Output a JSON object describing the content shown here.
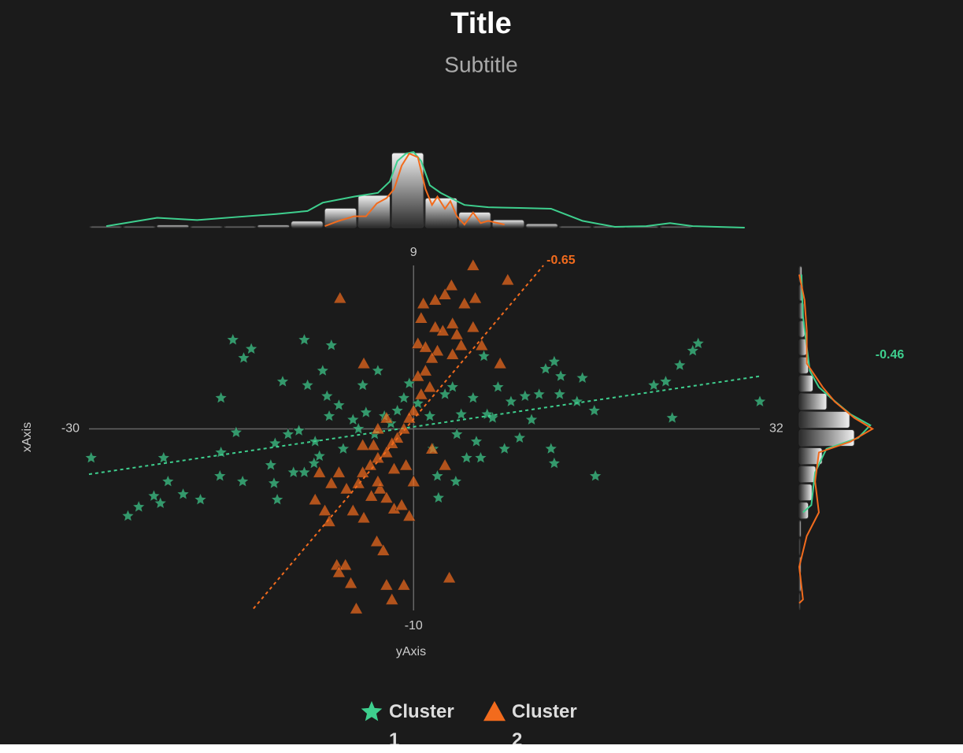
{
  "chart_data": {
    "type": "scatter",
    "title": "Title",
    "subtitle": "Subtitle",
    "xlabel": "yAxis",
    "ylabel": "xAxis",
    "xlim": [
      -30,
      32
    ],
    "ylim": [
      -10,
      9
    ],
    "xticks": [
      -30,
      32
    ],
    "yticks": [
      -10,
      9
    ],
    "series": [
      {
        "name": "Cluster 1",
        "color": "#3ecf8e",
        "marker": "star",
        "x": [
          -29.8,
          -26.4,
          -25.4,
          -24.0,
          -23.4,
          -23.1,
          -22.7,
          -21.3,
          -19.7,
          -17.8,
          -17.8,
          -17.9,
          -16.7,
          -15.8,
          -15.7,
          -15.0,
          -16.4,
          -13.2,
          -12.9,
          -12.6,
          -12.8,
          -12.1,
          -11.6,
          -11.1,
          -10.6,
          -10.1,
          -10.1,
          -9.8,
          -9.2,
          -9.1,
          -8.7,
          -8.4,
          -7.6,
          -8.0,
          -7.8,
          -6.9,
          -6.5,
          -5.6,
          -5.1,
          -4.7,
          -4.4,
          -3.6,
          -3.3,
          -2.7,
          -2.1,
          -1.5,
          -0.9,
          -0.4,
          0.4,
          1.5,
          1.8,
          2.2,
          2.3,
          2.9,
          3.6,
          3.9,
          4.0,
          4.4,
          4.9,
          5.5,
          5.8,
          6.2,
          6.5,
          6.8,
          7.3,
          7.8,
          8.4,
          9.0,
          9.8,
          10.3,
          10.9,
          11.6,
          12.2,
          12.7,
          13.0,
          13.0,
          13.5,
          13.6,
          15.1,
          15.6,
          16.7,
          16.8,
          22.2,
          23.3,
          23.9,
          24.6,
          25.8,
          26.3,
          32.0
        ],
        "y": [
          -1.6,
          -4.8,
          -4.3,
          -3.7,
          -4.1,
          -1.6,
          -2.9,
          -3.6,
          -3.9,
          -1.3,
          1.7,
          -2.6,
          4.9,
          -2.9,
          3.9,
          4.4,
          -0.2,
          -2.0,
          -3.0,
          -3.9,
          -0.8,
          2.6,
          -0.3,
          -2.4,
          -0.1,
          4.9,
          -2.4,
          2.4,
          -1.9,
          -0.7,
          -1.5,
          3.2,
          4.6,
          1.8,
          0.7,
          1.3,
          -1.1,
          0.5,
          0.0,
          2.4,
          0.9,
          -0.3,
          3.2,
          0.7,
          0.3,
          1.0,
          1.7,
          2.5,
          1.4,
          0.7,
          -1.1,
          -2.6,
          -3.8,
          1.9,
          2.3,
          -2.9,
          -0.3,
          0.8,
          -1.6,
          1.7,
          -0.7,
          -1.6,
          4.0,
          0.8,
          0.6,
          2.3,
          -1.1,
          1.5,
          -0.5,
          1.8,
          0.5,
          1.9,
          3.3,
          -1.1,
          3.7,
          -1.9,
          1.9,
          2.9,
          1.5,
          2.8,
          1.0,
          -2.6,
          2.4,
          2.6,
          0.6,
          3.5,
          4.3,
          4.7,
          1.5
        ],
        "trend": {
          "x": [
            -30,
            32
          ],
          "y": [
            -2.5,
            2.9
          ],
          "label": "-0.46"
        },
        "density_top": {
          "x": [
            -28.4,
            -23.7,
            -20.0,
            -16.4,
            -12.7,
            -9.8,
            -8.4,
            -5.5,
            -3.3,
            -2.2,
            -1.5,
            -0.7,
            0.0,
            0.7,
            1.5,
            2.5,
            4.7,
            6.9,
            9.8,
            12.7,
            15.6,
            18.6,
            21.5,
            23.7,
            25.8,
            30.6
          ],
          "values": [
            0.02,
            0.13,
            0.1,
            0.14,
            0.18,
            0.22,
            0.33,
            0.41,
            0.46,
            0.61,
            0.88,
            0.98,
            1.0,
            0.88,
            0.56,
            0.46,
            0.3,
            0.27,
            0.26,
            0.25,
            0.09,
            0.01,
            0.02,
            0.06,
            0.02,
            0.0
          ]
        },
        "density_right": {
          "y": [
            8.5,
            6.2,
            4.5,
            3.2,
            2.3,
            1.7,
            0.8,
            0.2,
            -0.5,
            -1.1,
            -2.4,
            -4.2,
            -4.6
          ],
          "values": [
            0.03,
            0.05,
            0.1,
            0.14,
            0.26,
            0.42,
            0.68,
            0.94,
            0.78,
            0.36,
            0.21,
            0.16,
            0.05
          ]
        }
      },
      {
        "name": "Cluster 2",
        "color": "#f26b1d",
        "marker": "triangle",
        "x": [
          -6.8,
          5.5,
          8.7,
          3.5,
          5.7,
          4.7,
          2.9,
          2.0,
          0.9,
          0.7,
          2.0,
          2.7,
          3.6,
          5.5,
          4.0,
          0.4,
          1.1,
          2.2,
          4.4,
          6.3,
          8.0,
          -4.6,
          1.7,
          3.6,
          1.1,
          0.4,
          1.5,
          0.7,
          0.0,
          -0.4,
          -0.9,
          -1.5,
          -2.0,
          -2.5,
          -3.3,
          -4.0,
          -4.7,
          -5.1,
          -6.2,
          -6.9,
          -7.6,
          -8.7,
          -9.1,
          -8.2,
          -7.8,
          -5.6,
          -4.6,
          -3.9,
          -3.1,
          -2.5,
          -1.8,
          -1.1,
          -0.4,
          0.0,
          -0.7,
          -1.8,
          -3.3,
          -3.7,
          -4.7,
          -3.4,
          -2.8,
          -7.1,
          -6.3,
          -6.9,
          -5.8,
          -2.5,
          -2.0,
          -0.9,
          -5.3,
          3.3,
          1.7,
          2.9,
          -3.3,
          -2.5
        ],
        "y": [
          7.2,
          9.0,
          8.2,
          7.9,
          7.2,
          6.9,
          7.4,
          7.1,
          6.9,
          6.1,
          5.6,
          5.4,
          5.8,
          5.6,
          5.2,
          4.7,
          4.5,
          4.3,
          4.6,
          4.6,
          3.6,
          3.6,
          3.9,
          4.1,
          3.2,
          2.9,
          2.3,
          1.9,
          1.0,
          0.6,
          0.0,
          -0.5,
          -0.8,
          -1.3,
          -1.6,
          -2.0,
          -2.4,
          -3.0,
          -3.3,
          -2.4,
          -3.0,
          -2.4,
          -3.9,
          -4.5,
          -5.1,
          -4.5,
          -4.9,
          -3.7,
          -3.3,
          -3.8,
          -4.4,
          -4.2,
          -4.8,
          -2.9,
          -2.0,
          -2.2,
          -2.9,
          -0.9,
          -0.9,
          -6.2,
          -6.7,
          -7.5,
          -7.5,
          -7.9,
          -8.5,
          -8.6,
          -9.4,
          -8.6,
          -9.9,
          -8.2,
          -1.1,
          -2.0,
          0.0,
          0.6
        ],
        "trend": {
          "x": [
            -14.8,
            12.0
          ],
          "y": [
            -9.9,
            9.0
          ],
          "label": "-0.65"
        },
        "density_top": {
          "x": [
            -8.2,
            -6.9,
            -5.5,
            -4.4,
            -3.4,
            -2.5,
            -1.8,
            -1.1,
            -0.4,
            0.4,
            1.1,
            1.7,
            2.2,
            2.9,
            3.4,
            4.0,
            4.7,
            5.5,
            6.2,
            6.9,
            8.4
          ],
          "values": [
            0.02,
            0.09,
            0.15,
            0.15,
            0.32,
            0.39,
            0.51,
            0.82,
            0.98,
            0.93,
            0.51,
            0.3,
            0.41,
            0.25,
            0.35,
            0.15,
            0.04,
            0.2,
            0.06,
            0.09,
            0.04
          ]
        },
        "density_right": {
          "y": [
            8.5,
            7.1,
            5.4,
            3.6,
            2.3,
            1.5,
            0.6,
            0.0,
            -0.7,
            -1.3,
            -2.9,
            -4.6,
            -5.9,
            -7.6,
            -9.4,
            -9.6
          ],
          "values": [
            0.0,
            0.07,
            0.1,
            0.1,
            0.31,
            0.47,
            0.73,
            0.97,
            0.68,
            0.26,
            0.21,
            0.26,
            0.1,
            0.0,
            0.05,
            0.0
          ]
        }
      }
    ],
    "hist_top": {
      "bins": [
        -30,
        -26.9,
        -23.8,
        -20.7,
        -17.6,
        -14.5,
        -11.4,
        -8.3,
        -5.2,
        -2.1,
        1.0,
        4.1,
        7.2,
        10.3,
        13.4,
        16.5,
        19.6,
        22.7,
        25.8,
        28.9,
        32
      ],
      "counts": [
        1,
        1,
        2,
        1,
        1,
        2,
        5,
        15,
        25,
        58,
        23,
        12,
        6,
        3,
        1,
        1,
        1,
        1,
        0,
        0
      ]
    },
    "hist_right": {
      "bins": [
        -10,
        -9,
        -8,
        -7,
        -6,
        -5,
        -4,
        -3,
        -2,
        -1,
        0,
        1,
        2,
        3,
        4,
        5,
        6,
        7,
        8,
        9
      ],
      "counts": [
        1,
        2,
        2,
        1,
        2,
        10,
        14,
        18,
        25,
        60,
        55,
        30,
        15,
        10,
        8,
        6,
        5,
        4,
        3
      ]
    }
  }
}
